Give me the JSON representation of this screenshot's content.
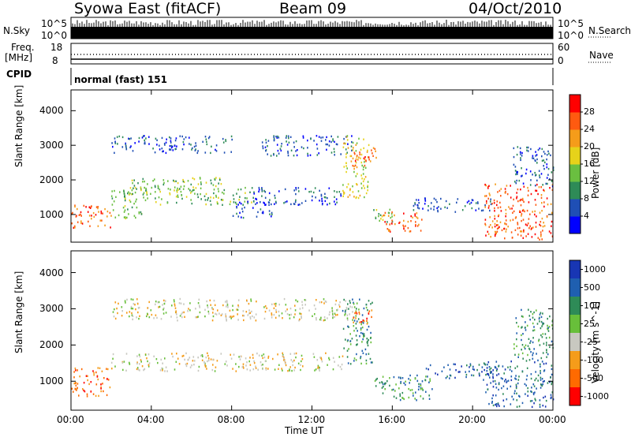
{
  "header": {
    "station": "Syowa East (fitACF)",
    "beam": "Beam 09",
    "date": "04/Oct/2010"
  },
  "top_panels": {
    "nsky_label": "N.Sky",
    "nsky_ticks": [
      "10^5",
      "10^0"
    ],
    "nsearch_label": "N.Search",
    "nsearch_ticks": [
      "10^5",
      "10^0"
    ],
    "freq_label": "Freq.",
    "freq_unit": "[MHz]",
    "freq_ticks": [
      "18",
      "8"
    ],
    "nave_label": "Nave",
    "nave_ticks": [
      "60",
      "0"
    ],
    "cpid_label": "CPID",
    "cpid_value": "normal (fast) 151"
  },
  "chart_data": [
    {
      "type": "heatmap",
      "title": "",
      "xlabel": "",
      "ylabel": "Slant Range [km]",
      "xlim": [
        0,
        24
      ],
      "ylim": [
        200,
        4600
      ],
      "x_ticks": [
        "00:00",
        "04:00",
        "08:00",
        "12:00",
        "16:00",
        "20:00",
        "00:00"
      ],
      "y_ticks": [
        1000,
        2000,
        3000,
        4000
      ],
      "colorbar": {
        "label": "Power [dB]",
        "range": [
          0,
          32
        ],
        "ticks": [
          "4",
          "8",
          "12",
          "16",
          "20",
          "24",
          "28"
        ],
        "colors": [
          "#0000ff",
          "#1f4fb5",
          "#2e8b57",
          "#6abf40",
          "#e6d21a",
          "#f59c1a",
          "#ff5a10",
          "#ff0000"
        ]
      },
      "patches": [
        {
          "t": [
            0.0,
            2.0
          ],
          "r": [
            600,
            1300
          ],
          "c": 6
        },
        {
          "t": [
            2.0,
            3.5
          ],
          "r": [
            900,
            1300
          ],
          "c": 3
        },
        {
          "t": [
            2.0,
            9.0
          ],
          "r": [
            1300,
            1800
          ],
          "c": 3
        },
        {
          "t": [
            3.0,
            7.5
          ],
          "r": [
            1700,
            2100
          ],
          "c": 3
        },
        {
          "t": [
            9.0,
            13.5
          ],
          "r": [
            1300,
            1800
          ],
          "c": 1
        },
        {
          "t": [
            8.0,
            10.0
          ],
          "r": [
            900,
            1400
          ],
          "c": 1
        },
        {
          "t": [
            2.0,
            8.0
          ],
          "r": [
            2800,
            3300
          ],
          "c": 1
        },
        {
          "t": [
            9.5,
            14.0
          ],
          "r": [
            2700,
            3300
          ],
          "c": 1
        },
        {
          "t": [
            13.5,
            14.8
          ],
          "r": [
            1500,
            3300
          ],
          "c": 4
        },
        {
          "t": [
            14.0,
            15.2
          ],
          "r": [
            2400,
            3000
          ],
          "c": 6
        },
        {
          "t": [
            15.0,
            16.0
          ],
          "r": [
            800,
            1300
          ],
          "c": 3
        },
        {
          "t": [
            15.5,
            17.5
          ],
          "r": [
            500,
            1100
          ],
          "c": 6
        },
        {
          "t": [
            17.0,
            21.0
          ],
          "r": [
            1100,
            1500
          ],
          "c": 1
        },
        {
          "t": [
            20.5,
            24.0
          ],
          "r": [
            300,
            1900
          ],
          "c": 6
        },
        {
          "t": [
            22.0,
            24.0
          ],
          "r": [
            1800,
            3000
          ],
          "c": 1
        }
      ]
    },
    {
      "type": "heatmap",
      "title": "",
      "xlabel": "Time UT",
      "ylabel": "Slant Range [km]",
      "xlim": [
        0,
        24
      ],
      "ylim": [
        200,
        4600
      ],
      "x_ticks": [
        "00:00",
        "04:00",
        "08:00",
        "12:00",
        "16:00",
        "20:00",
        "00:00"
      ],
      "y_ticks": [
        1000,
        2000,
        3000,
        4000
      ],
      "colorbar": {
        "label": "Velocity [m s^-1]",
        "ticks": [
          "1000",
          "500",
          "100",
          "25",
          "-25",
          "-100",
          "-500",
          "-1000"
        ],
        "colors": [
          "#1836b4",
          "#1f5fb0",
          "#2e8b57",
          "#68bf3a",
          "#c8c8c0",
          "#f59c1a",
          "#ff6a00",
          "#ff0000"
        ]
      },
      "patches": [
        {
          "t": [
            0.0,
            2.0
          ],
          "r": [
            600,
            1400
          ],
          "c": 6
        },
        {
          "t": [
            2.0,
            13.5
          ],
          "r": [
            1300,
            1800
          ],
          "c": 4
        },
        {
          "t": [
            2.0,
            9.5
          ],
          "r": [
            2700,
            3300
          ],
          "c": 4
        },
        {
          "t": [
            9.5,
            14.0
          ],
          "r": [
            2700,
            3300
          ],
          "c": 4
        },
        {
          "t": [
            13.5,
            15.0
          ],
          "r": [
            1500,
            3300
          ],
          "c": 2
        },
        {
          "t": [
            14.0,
            15.0
          ],
          "r": [
            2600,
            3000
          ],
          "c": 6
        },
        {
          "t": [
            15.0,
            18.0
          ],
          "r": [
            500,
            1200
          ],
          "c": 2
        },
        {
          "t": [
            17.5,
            21.0
          ],
          "r": [
            1100,
            1500
          ],
          "c": 1
        },
        {
          "t": [
            20.5,
            24.0
          ],
          "r": [
            300,
            1600
          ],
          "c": 1
        },
        {
          "t": [
            22.0,
            24.0
          ],
          "r": [
            1600,
            3000
          ],
          "c": 2
        }
      ]
    }
  ]
}
